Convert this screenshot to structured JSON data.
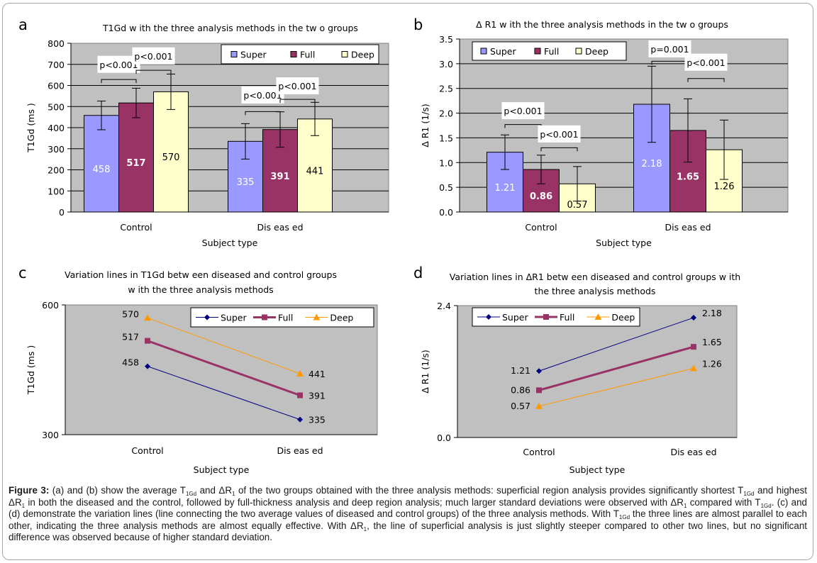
{
  "figure": {
    "caption_label": "Figure 3:",
    "caption_parts": [
      {
        "t": "  (a) and (b) show the average T"
      },
      {
        "sub": "1Gd"
      },
      {
        "t": " and ΔR"
      },
      {
        "sub": "1"
      },
      {
        "t": " of the two groups obtained with the three analysis methods: superficial region analysis provides significantly shortest T"
      },
      {
        "sub": "1Gd"
      },
      {
        "t": " and highest ΔR"
      },
      {
        "sub": "1"
      },
      {
        "t": " in both the diseased and the control, followed by full-thickness analysis and deep region analysis; much larger standard deviations were observed with ΔR"
      },
      {
        "sub": "1"
      },
      {
        "t": " compared with T"
      },
      {
        "sub": "1Gd"
      },
      {
        "t": ". (c) and (d) demonstrate the variation lines (line connecting the two average values of diseased and control groups) of the three analysis methods. With T"
      },
      {
        "sub": "1Gd"
      },
      {
        "t": " the three lines are almost parallel to each other, indicating the three analysis methods are almost equally effective. With ΔR"
      },
      {
        "sub": "1"
      },
      {
        "t": ", the line of superficial analysis is just slightly steeper compared to other two lines, but no significant difference was observed because of higher standard deviation."
      }
    ]
  },
  "colors": {
    "plot_bg": "#c0c0c0",
    "super_bar": "#9999ff",
    "full_bar": "#993366",
    "deep_bar": "#ffffcc",
    "super_line": "#000080",
    "full_line": "#993366",
    "deep_line": "#ff9900"
  },
  "chart_data": [
    {
      "panel": "a",
      "type": "bar",
      "title": "T1Gd w ith the three analysis methods in the tw o groups",
      "xlabel": "Subject type",
      "ylabel": "T1Gd (ms  )",
      "categories": [
        "Control",
        "Dis eas ed"
      ],
      "ylim": [
        0,
        800
      ],
      "yticks": [
        0,
        100,
        200,
        300,
        400,
        500,
        600,
        700,
        800
      ],
      "ytick_labels": [
        "0",
        "100",
        "200",
        "300",
        "400",
        "500",
        "600",
        "700",
        "800"
      ],
      "grid": true,
      "legend": "top-right",
      "series": [
        {
          "name": "Super",
          "values": [
            458,
            335
          ],
          "errors": [
            68,
            84
          ],
          "labels": [
            "458",
            "335"
          ],
          "label_color": "#ffffff"
        },
        {
          "name": "Full",
          "values": [
            517,
            391
          ],
          "errors": [
            70,
            84
          ],
          "labels": [
            "517",
            "391"
          ],
          "label_color": "#ffffff"
        },
        {
          "name": "Deep",
          "values": [
            570,
            441
          ],
          "errors": [
            84,
            79
          ],
          "labels": [
            "570",
            "441"
          ],
          "label_color": "#000000"
        }
      ],
      "annotations": [
        {
          "text": "p<0.001",
          "group": 0,
          "from": 0,
          "to": 1,
          "bracket_y": 628,
          "box_y": 700
        },
        {
          "text": "p<0.001",
          "group": 0,
          "from": 1,
          "to": 2,
          "bracket_y": 672,
          "box_y": 740
        },
        {
          "text": "p<0.001",
          "group": 1,
          "from": 0,
          "to": 1,
          "bracket_y": 476,
          "box_y": 555
        },
        {
          "text": "p<0.001",
          "group": 1,
          "from": 1,
          "to": 2,
          "bracket_y": 534,
          "box_y": 598
        }
      ]
    },
    {
      "panel": "b",
      "type": "bar",
      "title": "Δ R1 w ith the three analysis methods in the tw o groups",
      "xlabel": "Subject type",
      "ylabel": "Δ R1 (1/s)",
      "categories": [
        "Control",
        "Dis eas ed"
      ],
      "ylim": [
        0,
        3.5
      ],
      "yticks": [
        0,
        0.5,
        1.0,
        1.5,
        2.0,
        2.5,
        3.0,
        3.5
      ],
      "ytick_labels": [
        "0.0",
        "0.5",
        "1.0",
        "1.5",
        "2.0",
        "2.5",
        "3.0",
        "3.5"
      ],
      "grid": true,
      "legend": "top-left",
      "series": [
        {
          "name": "Super",
          "values": [
            1.21,
            2.18
          ],
          "errors": [
            0.35,
            0.77
          ],
          "labels": [
            "1.21",
            "2.18"
          ],
          "label_color": "#ffffff"
        },
        {
          "name": "Full",
          "values": [
            0.86,
            1.65
          ],
          "errors": [
            0.29,
            0.64
          ],
          "labels": [
            "0.86",
            "1.65"
          ],
          "label_color": "#ffffff"
        },
        {
          "name": "Deep",
          "values": [
            0.57,
            1.26
          ],
          "errors": [
            0.35,
            0.6
          ],
          "labels": [
            "0.57",
            "1.26"
          ],
          "label_color": "#000000"
        }
      ],
      "annotations": [
        {
          "text": "p<0.001",
          "group": 0,
          "from": 0,
          "to": 1,
          "bracket_y": 1.77,
          "box_y": 2.05
        },
        {
          "text": "p<0.001",
          "group": 0,
          "from": 1,
          "to": 2,
          "bracket_y": 1.3,
          "box_y": 1.58
        },
        {
          "text": "p=0.001",
          "group": 1,
          "from": 0,
          "to": 1,
          "bracket_y": 3.05,
          "box_y": 3.3
        },
        {
          "text": "p<0.001",
          "group": 1,
          "from": 1,
          "to": 2,
          "bracket_y": 2.7,
          "box_y": 3.03
        }
      ]
    },
    {
      "panel": "c",
      "type": "line",
      "title": [
        "Variation lines in T1Gd betw een diseased and control groups",
        "w ith the three analysis methods"
      ],
      "xlabel": "Subject type",
      "ylabel": "T1Gd (ms  )",
      "categories": [
        "Control",
        "Dis eas ed"
      ],
      "ylim": [
        300,
        600
      ],
      "yticks": [
        300,
        600
      ],
      "ytick_labels": [
        "300",
        "600"
      ],
      "grid": false,
      "legend": "top-right",
      "series": [
        {
          "name": "Super",
          "values": [
            458,
            335
          ],
          "labels": [
            "458",
            "335"
          ],
          "marker": "diamond"
        },
        {
          "name": "Full",
          "values": [
            517,
            391
          ],
          "labels": [
            "517",
            "391"
          ],
          "marker": "square"
        },
        {
          "name": "Deep",
          "values": [
            570,
            441
          ],
          "labels": [
            "570",
            "441"
          ],
          "marker": "triangle"
        }
      ]
    },
    {
      "panel": "d",
      "type": "line",
      "title": [
        "Variation lines in   ΔR1 betw een diseased and control groups w ith",
        "the three analysis methods"
      ],
      "xlabel": "Subject type",
      "ylabel": "Δ R1 (1/s)",
      "categories": [
        "Control",
        "Dis eas ed"
      ],
      "ylim": [
        0,
        2.4
      ],
      "yticks": [
        0,
        2.4
      ],
      "ytick_labels": [
        "0.0",
        "2.4"
      ],
      "grid": false,
      "legend": "top-left",
      "series": [
        {
          "name": "Super",
          "values": [
            1.21,
            2.18
          ],
          "labels": [
            "1.21",
            "2.18"
          ],
          "marker": "diamond"
        },
        {
          "name": "Full",
          "values": [
            0.86,
            1.65
          ],
          "labels": [
            "0.86",
            "1.65"
          ],
          "marker": "square"
        },
        {
          "name": "Deep",
          "values": [
            0.57,
            1.26
          ],
          "labels": [
            "0.57",
            "1.26"
          ],
          "marker": "triangle"
        }
      ]
    }
  ]
}
